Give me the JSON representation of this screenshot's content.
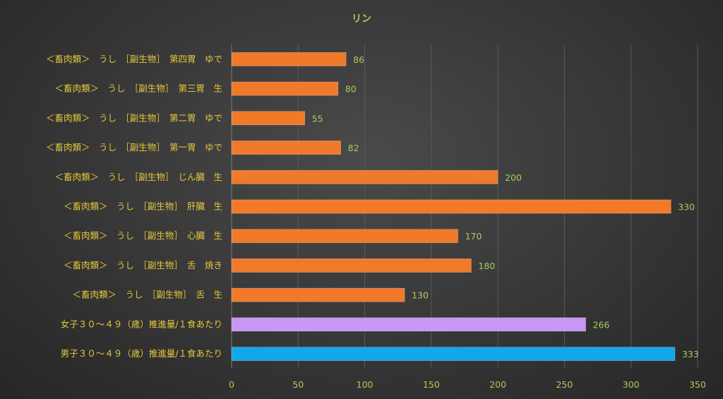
{
  "chart_data": {
    "type": "bar",
    "orientation": "horizontal",
    "title": "リン",
    "categories": [
      "＜畜肉類＞　うし　［副生物］　第四胃　ゆで",
      "＜畜肉類＞　うし　［副生物］　第三胃　生",
      "＜畜肉類＞　うし　［副生物］　第二胃　ゆで",
      "＜畜肉類＞　うし　［副生物］　第一胃　ゆで",
      "＜畜肉類＞　うし　［副生物］　じん臓　生",
      "＜畜肉類＞　うし　［副生物］　肝臓　生",
      "＜畜肉類＞　うし　［副生物］　心臓　生",
      "＜畜肉類＞　うし　［副生物］　舌　焼き",
      "＜畜肉類＞　うし　［副生物］　舌　生",
      "女子３０～４９（歳）推進量/１食あたり",
      "男子３０～４９（歳）推進量/１食あたり"
    ],
    "values": [
      86,
      80,
      55,
      82,
      200,
      330,
      170,
      180,
      130,
      266,
      333
    ],
    "bar_colors": [
      "#f07a2a",
      "#f07a2a",
      "#f07a2a",
      "#f07a2a",
      "#f07a2a",
      "#f07a2a",
      "#f07a2a",
      "#f07a2a",
      "#f07a2a",
      "#c896f5",
      "#14a8e8"
    ],
    "xlim": [
      0,
      350
    ],
    "xticks": [
      0,
      50,
      100,
      150,
      200,
      250,
      300,
      350
    ],
    "grid": true,
    "legend": "none",
    "colors": {
      "title": "#a8cc5c",
      "category_labels": "#e6c93c",
      "value_labels": "#a8cc5c",
      "tick_labels": "#a8cc5c"
    }
  }
}
